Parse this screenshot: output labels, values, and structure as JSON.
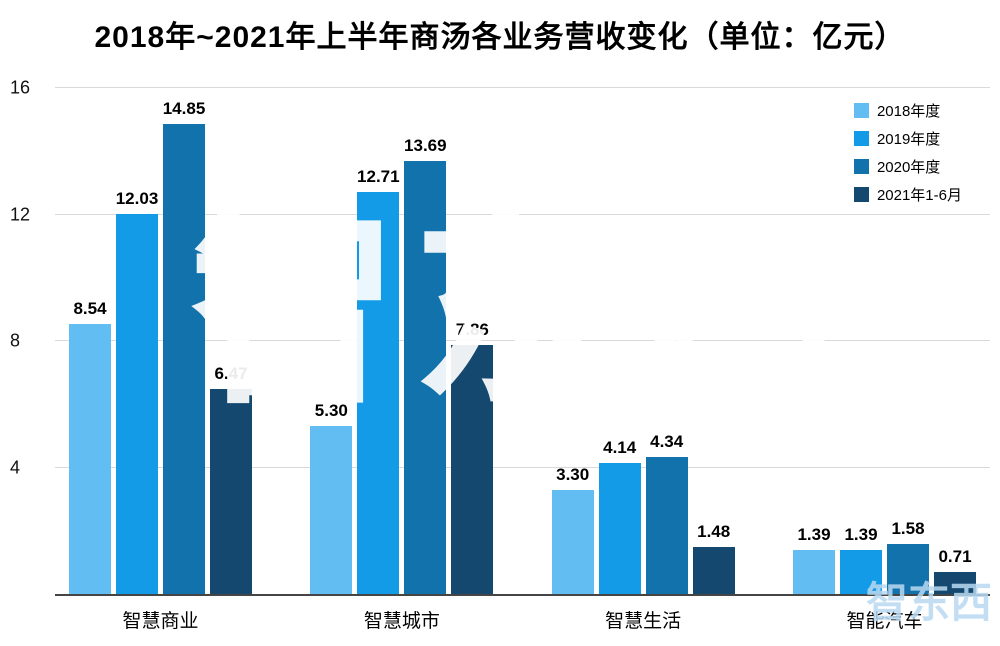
{
  "title": "2018年~2021年上半年商汤各业务营收变化（单位：亿元）",
  "watermark": {
    "main": "智东西",
    "corner": "智东西"
  },
  "chart_data": {
    "type": "bar",
    "title": "2018年~2021年上半年商汤各业务营收变化（单位：亿元）",
    "categories": [
      "智慧商业",
      "智慧城市",
      "智慧生活",
      "智能汽车"
    ],
    "series": [
      {
        "name": "2018年度",
        "color": "#62BDF2",
        "values": [
          8.54,
          5.3,
          3.3,
          1.39
        ]
      },
      {
        "name": "2019年度",
        "color": "#149BE8",
        "values": [
          12.03,
          12.71,
          4.14,
          1.39
        ]
      },
      {
        "name": "2020年度",
        "color": "#1272AC",
        "values": [
          14.85,
          13.69,
          4.34,
          1.58
        ]
      },
      {
        "name": "2021年1-6月",
        "color": "#15486F",
        "values": [
          6.47,
          7.86,
          1.48,
          0.71
        ]
      }
    ],
    "xlabel": "",
    "ylabel": "",
    "ylim": [
      0,
      16
    ],
    "yticks": [
      4,
      8,
      12,
      16
    ],
    "grid": true,
    "legend_position": "top-right",
    "value_labels": "2dp",
    "axis_color": "#454545",
    "gridline_color": "#d9d9d9"
  }
}
